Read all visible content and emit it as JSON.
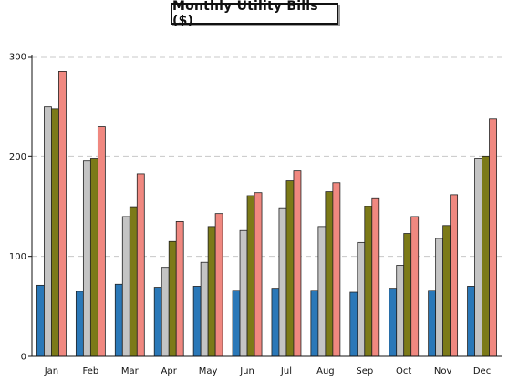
{
  "chart_data": {
    "type": "bar",
    "title": "Monthly Utility Bills ($)",
    "xlabel": "",
    "ylabel": "",
    "categories": [
      "Jan",
      "Feb",
      "Mar",
      "Apr",
      "May",
      "Jun",
      "Jul",
      "Aug",
      "Sep",
      "Oct",
      "Nov",
      "Dec"
    ],
    "ylim": [
      0,
      300
    ],
    "yticks": [
      0,
      100,
      200,
      300
    ],
    "grid": true,
    "legend": "none",
    "series": [
      {
        "color": "#2a78b8",
        "values": [
          71,
          65,
          72,
          69,
          70,
          66,
          68,
          66,
          64,
          68,
          66,
          70
        ]
      },
      {
        "color": "#c4c4c4",
        "values": [
          250,
          196,
          140,
          89,
          94,
          126,
          148,
          130,
          114,
          91,
          118,
          198
        ]
      },
      {
        "color": "#7c7a18",
        "values": [
          248,
          198,
          149,
          115,
          130,
          161,
          176,
          165,
          150,
          123,
          131,
          200
        ]
      },
      {
        "color": "#f08880",
        "values": [
          285,
          230,
          183,
          135,
          143,
          164,
          186,
          174,
          158,
          140,
          162,
          238
        ]
      }
    ]
  }
}
